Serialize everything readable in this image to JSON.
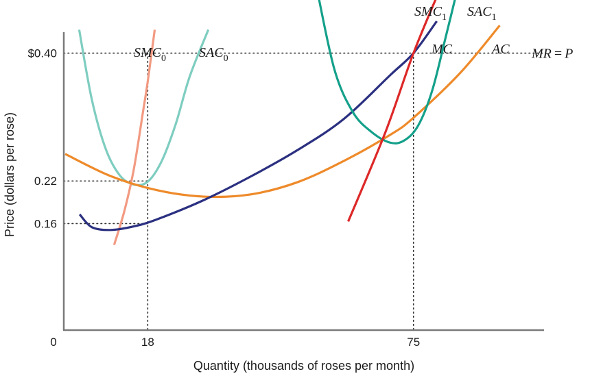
{
  "chart_data": {
    "type": "line",
    "title": "",
    "xlabel": "Quantity (thousands of roses per month)",
    "ylabel": "Price (dollars per rose)",
    "x_tick_labels": [
      {
        "value": 0,
        "label": "0"
      },
      {
        "value": 18,
        "label": "18"
      },
      {
        "value": 75,
        "label": "75"
      }
    ],
    "y_tick_labels": [
      {
        "value": 0.4,
        "label": "$0.40"
      },
      {
        "value": 0.22,
        "label": "0.22"
      },
      {
        "value": 0.16,
        "label": "0.16"
      }
    ],
    "xlim": [
      0,
      103
    ],
    "ylim": [
      0.01,
      0.47
    ],
    "grid": false,
    "reference_lines": {
      "horizontal": [
        {
          "y": 0.4,
          "x_end": 103,
          "label_main": "MR",
          "label_eq": "=",
          "label_tail": "P"
        },
        {
          "y": 0.22,
          "x_end": 18
        },
        {
          "y": 0.16,
          "x_end": 18
        }
      ],
      "vertical": [
        {
          "x": 18,
          "y_end": 0.4
        },
        {
          "x": 75,
          "y_end": 0.4
        }
      ]
    },
    "series": [
      {
        "label_main": "SAC",
        "label_sub": "0",
        "color": "#7ecdc0",
        "x": [
          3.3,
          6,
          9,
          12,
          15,
          18,
          21,
          24,
          27,
          31
        ],
        "y": [
          0.433,
          0.335,
          0.265,
          0.228,
          0.215,
          0.219,
          0.248,
          0.3,
          0.367,
          0.433
        ]
      },
      {
        "label_main": "SMC",
        "label_sub": "0",
        "color": "#f29a82",
        "x": [
          10.8,
          13,
          15,
          17,
          18,
          19.5
        ],
        "y": [
          0.13,
          0.178,
          0.236,
          0.318,
          0.36,
          0.433
        ]
      },
      {
        "label_main": "AC",
        "label_sub": "",
        "color": "#ee8a2a",
        "x": [
          0.3,
          10,
          20,
          30,
          40,
          50,
          60,
          70,
          75,
          85,
          93.5
        ],
        "y": [
          0.258,
          0.227,
          0.207,
          0.198,
          0.201,
          0.218,
          0.248,
          0.285,
          0.309,
          0.372,
          0.439
        ]
      },
      {
        "label_main": "MC",
        "label_sub": "",
        "color": "#2b3080",
        "x": [
          3.4,
          6,
          10,
          15,
          20,
          30,
          40,
          50,
          60,
          70,
          75,
          80
        ],
        "y": [
          0.173,
          0.155,
          0.151,
          0.156,
          0.166,
          0.193,
          0.226,
          0.263,
          0.307,
          0.369,
          0.4,
          0.445
        ]
      },
      {
        "label_main": "SAC",
        "label_sub": "1",
        "color": "#14a08a",
        "x": [
          54,
          58,
          62,
          66,
          70,
          73,
          76,
          79,
          82,
          84.8
        ],
        "y": [
          0.5,
          0.378,
          0.317,
          0.289,
          0.274,
          0.277,
          0.298,
          0.347,
          0.425,
          0.5
        ]
      },
      {
        "label_main": "SMC",
        "label_sub": "1",
        "color": "#dd2828",
        "x": [
          61,
          69,
          75,
          81
        ],
        "y": [
          0.163,
          0.289,
          0.4,
          0.495
        ]
      }
    ]
  }
}
